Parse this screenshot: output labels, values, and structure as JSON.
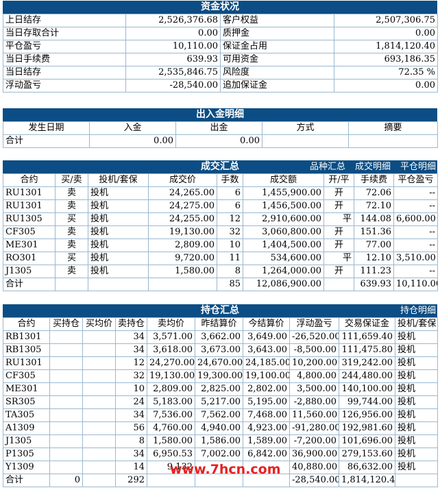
{
  "funds": {
    "title": "资金状况",
    "rows": [
      {
        "l1": "上日结存",
        "v1": "2,526,376.68",
        "l2": "客户权益",
        "v2": "2,507,306.75"
      },
      {
        "l1": "当日存取合计",
        "v1": "0.00",
        "l2": "质押金",
        "v2": "0.00"
      },
      {
        "l1": "平仓盈亏",
        "v1": "10,110.00",
        "l2": "保证金占用",
        "v2": "1,814,120.40"
      },
      {
        "l1": "当日手续费",
        "v1": "639.93",
        "l2": "可用资金",
        "v2": "693,186.35"
      },
      {
        "l1": "当日结存",
        "v1": "2,535,846.75",
        "l2": "风险度",
        "v2": "72.35 %"
      },
      {
        "l1": "浮动盈亏",
        "v1": "-28,540.00",
        "l2": "追加保证金",
        "v2": "0.00"
      }
    ]
  },
  "cashflow": {
    "title": "出入金明细",
    "headers": [
      "发生日期",
      "入金",
      "出金",
      "方式",
      "摘要"
    ],
    "total": {
      "label": "合计",
      "in": "0.00",
      "out": "0.00"
    }
  },
  "trades": {
    "title": "成交汇总",
    "links": [
      "品种汇总",
      "成交明细",
      "平仓明细"
    ],
    "headers": [
      "合约",
      "买/卖",
      "投机/套保",
      "成交价",
      "手数",
      "成交额",
      "开/平",
      "手续费",
      "平仓盈亏"
    ],
    "rows": [
      [
        "RU1301",
        "卖",
        "投机",
        "24,265.00",
        "6",
        "1,455,900.00",
        "开",
        "72.06",
        "--"
      ],
      [
        "RU1301",
        "卖",
        "投机",
        "24,275.00",
        "6",
        "1,456,500.00",
        "开",
        "72.10",
        "--"
      ],
      [
        "RU1305",
        "买",
        "投机",
        "24,255.00",
        "12",
        "2,910,600.00",
        "平",
        "144.08",
        "6,600.00"
      ],
      [
        "CF305",
        "卖",
        "投机",
        "19,130.00",
        "32",
        "3,060,800.00",
        "开",
        "151.36",
        "--"
      ],
      [
        "ME301",
        "卖",
        "投机",
        "2,809.00",
        "10",
        "1,404,500.00",
        "开",
        "77.00",
        "--"
      ],
      [
        "RO301",
        "买",
        "投机",
        "9,720.00",
        "11",
        "534,600.00",
        "平",
        "12.10",
        "3,510.00"
      ],
      [
        "J1305",
        "卖",
        "投机",
        "1,580.00",
        "8",
        "1,264,000.00",
        "开",
        "111.23",
        "--"
      ]
    ],
    "total": {
      "label": "合计",
      "lots": "85",
      "amount": "12,086,900.00",
      "fee": "639.93",
      "pnl": "10,110.00"
    }
  },
  "positions": {
    "title": "持仓汇总",
    "links": [
      "持仓明细"
    ],
    "headers": [
      "合约",
      "买持仓",
      "买均价",
      "卖持仓",
      "卖均价",
      "昨结算价",
      "今结算价",
      "浮动盈亏",
      "交易保证金",
      "投机/套保"
    ],
    "rows": [
      [
        "RB1301",
        "",
        "",
        "34",
        "3,571.00",
        "3,662.00",
        "3,649.00",
        "-26,520.00",
        "111,659.40",
        "投机"
      ],
      [
        "RB1305",
        "",
        "",
        "34",
        "3,618.00",
        "3,673.00",
        "3,643.00",
        "-8,500.00",
        "111,475.80",
        "投机"
      ],
      [
        "RU1301",
        "",
        "",
        "12",
        "24,270.00",
        "24,670.00",
        "24,185.00",
        "10,200.00",
        "319,242.00",
        "投机"
      ],
      [
        "CF305",
        "",
        "",
        "32",
        "19,130.00",
        "19,300.00",
        "19,100.00",
        "4,800.00",
        "244,480.00",
        "投机"
      ],
      [
        "ME301",
        "",
        "",
        "10",
        "2,809.00",
        "2,825.00",
        "2,802.00",
        "3,500.00",
        "140,100.00",
        "投机"
      ],
      [
        "SR305",
        "",
        "",
        "24",
        "5,183.00",
        "5,217.00",
        "5,195.00",
        "-2,880.00",
        "99,744.00",
        "投机"
      ],
      [
        "TA305",
        "",
        "",
        "34",
        "7,536.00",
        "7,562.00",
        "7,468.00",
        "11,560.00",
        "126,956.00",
        "投机"
      ],
      [
        "A1309",
        "",
        "",
        "56",
        "4,760.00",
        "4,940.00",
        "4,923.00",
        "-91,280.00",
        "192,981.60",
        "投机"
      ],
      [
        "J1305",
        "",
        "",
        "8",
        "1,580.00",
        "1,586.00",
        "1,589.00",
        "-7,200.00",
        "101,696.00",
        "投机"
      ],
      [
        "P1305",
        "",
        "",
        "34",
        "6,950.53",
        "7,002.00",
        "6,842.00",
        "36,900.00",
        "279,153.60",
        "投机"
      ],
      [
        "Y1309",
        "",
        "",
        "14",
        "9,132",
        "",
        "",
        "40,880.00",
        "86,632.00",
        "投机"
      ]
    ],
    "total": {
      "label": "合计",
      "buy": "0",
      "sell": "292",
      "pnl": "-28,540.00",
      "margin": "1,814,120.40"
    }
  },
  "watermark": "www.7hcn.com"
}
